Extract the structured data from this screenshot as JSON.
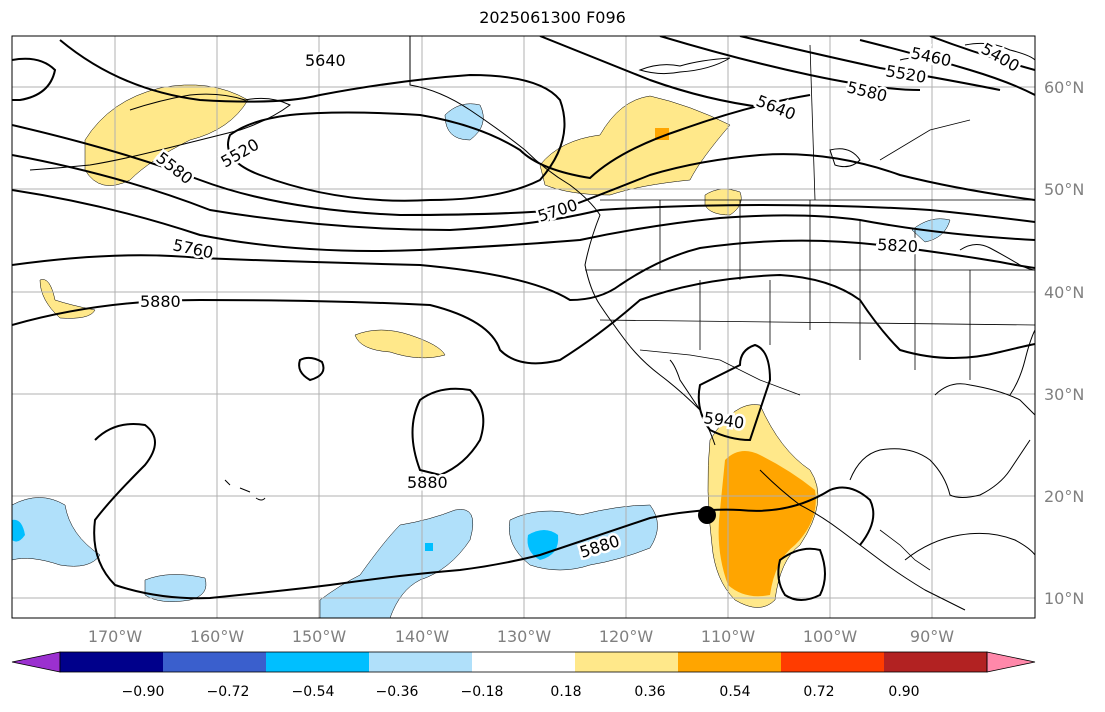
{
  "title": "2025061300 F096",
  "longitude_labels": [
    "170°W",
    "160°W",
    "150°W",
    "140°W",
    "130°W",
    "120°W",
    "110°W",
    "100°W",
    "90°W"
  ],
  "latitude_labels": [
    "60°N",
    "50°N",
    "40°N",
    "30°N",
    "20°N",
    "10°N"
  ],
  "contour_labels": [
    "5640",
    "5520",
    "5580",
    "5700",
    "5760",
    "5880",
    "5820",
    "5640",
    "5580",
    "5520",
    "5460",
    "5400",
    "5940",
    "5880",
    "5880"
  ],
  "colorbar": {
    "ticks": [
      "−0.90",
      "−0.72",
      "−0.54",
      "−0.36",
      "−0.18",
      "0.18",
      "0.36",
      "0.54",
      "0.72",
      "0.90"
    ],
    "colors": [
      "#9b30d0",
      "#00008b",
      "#3a5fcd",
      "#00bfff",
      "#b0e0fa",
      "#ffffff",
      "#ffe88a",
      "#ffa500",
      "#ff3c00",
      "#b22222",
      "#ff88aa"
    ]
  },
  "point_marker": "black-dot"
}
